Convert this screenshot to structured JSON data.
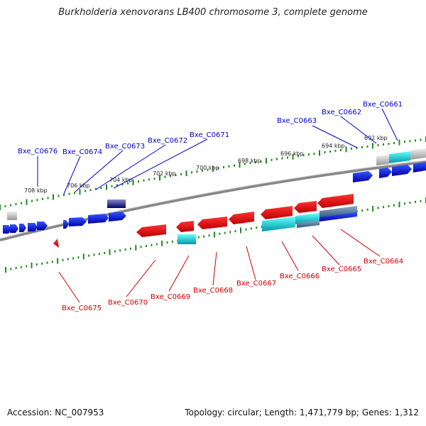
{
  "title": "Burkholderia xenovorans LB400 chromosome 3, complete genome",
  "footer": {
    "accession": "Accession: NC_007953",
    "topology": "Topology: circular; Length: 1,471,779 bp; Genes: 1,312"
  },
  "scale_labels": [
    "692 kbp",
    "694 kbp",
    "696 kbp",
    "698 kbp",
    "700 kbp",
    "702 kbp",
    "704 kbp",
    "706 kbp",
    "708 kbp"
  ],
  "top_gene_labels": [
    "Bxe_C0676",
    "Bxe_C0674",
    "Bxe_C0673",
    "Bxe_C0672",
    "Bxe_C0671",
    "Bxe_C0663",
    "Bxe_C0662",
    "Bxe_C0661"
  ],
  "bottom_gene_labels": [
    "Bxe_C0675",
    "Bxe_C0670",
    "Bxe_C0669",
    "Bxe_C0668",
    "Bxe_C0667",
    "Bxe_C0666",
    "Bxe_C0665",
    "Bxe_C0664"
  ],
  "colors": {
    "forward_strand": "#0000dd",
    "reverse_strand": "#dd0000",
    "tick": "#228822",
    "cyan_feature": "#00c8d8",
    "grey_feature": "#b0b0b0",
    "backbone": "#888888"
  }
}
